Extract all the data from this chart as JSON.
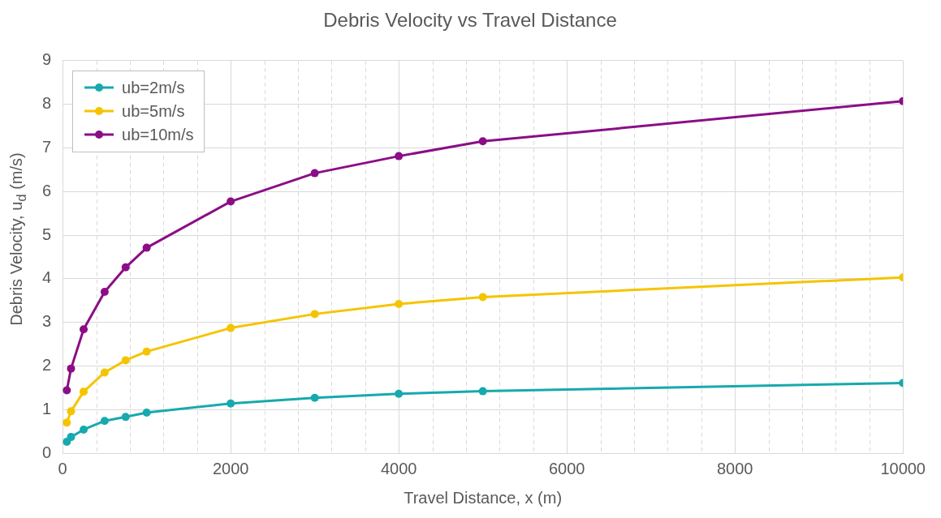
{
  "chart_data": {
    "type": "line",
    "title": "Debris Velocity vs Travel Distance",
    "xlabel": "Travel Distance, x (m)",
    "ylabel": "Debris Velocity, u$_{d}$ (m/s)",
    "x": [
      50,
      100,
      250,
      500,
      750,
      1000,
      2000,
      3000,
      4000,
      5000,
      10000
    ],
    "series": [
      {
        "name": "ub=2m/s",
        "color": "#17a9ad",
        "values": [
          0.26,
          0.37,
          0.54,
          0.74,
          0.83,
          0.93,
          1.14,
          1.27,
          1.36,
          1.42,
          1.61
        ]
      },
      {
        "name": "ub=5m/s",
        "color": "#f5c400",
        "values": [
          0.7,
          0.96,
          1.41,
          1.85,
          2.13,
          2.33,
          2.87,
          3.19,
          3.42,
          3.58,
          4.03
        ]
      },
      {
        "name": "ub=10m/s",
        "color": "#8b0e86",
        "values": [
          1.44,
          1.94,
          2.84,
          3.7,
          4.26,
          4.71,
          5.77,
          6.42,
          6.81,
          7.15,
          8.07
        ]
      }
    ],
    "xlim": [
      0,
      10000
    ],
    "xticks": [
      0,
      {
        "value": 400,
        "label": null
      },
      {
        "value": 800,
        "label": null
      },
      {
        "value": 1200,
        "label": null
      },
      {
        "value": 1600,
        "label": null
      },
      2000,
      {
        "value": 2400,
        "label": null
      },
      {
        "value": 2800,
        "label": null
      },
      {
        "value": 3200,
        "label": null
      },
      {
        "value": 3600,
        "label": null
      },
      4000,
      {
        "value": 4400,
        "label": null
      },
      {
        "value": 4800,
        "label": null
      },
      {
        "value": 5200,
        "label": null
      },
      {
        "value": 5600,
        "label": null
      },
      6000,
      {
        "value": 6400,
        "label": null
      },
      {
        "value": 6800,
        "label": null
      },
      {
        "value": 7200,
        "label": null
      },
      {
        "value": 7600,
        "label": null
      },
      8000,
      {
        "value": 8400,
        "label": null
      },
      {
        "value": 8800,
        "label": null
      },
      {
        "value": 9200,
        "label": null
      },
      {
        "value": 9600,
        "label": null
      },
      10000
    ],
    "ylim": [
      0,
      9
    ],
    "yticks": [
      0,
      1,
      2,
      3,
      4,
      5,
      6,
      7,
      8,
      9
    ],
    "grid": true,
    "legend": "top left",
    "marker": "circle",
    "line_style": "solid"
  }
}
